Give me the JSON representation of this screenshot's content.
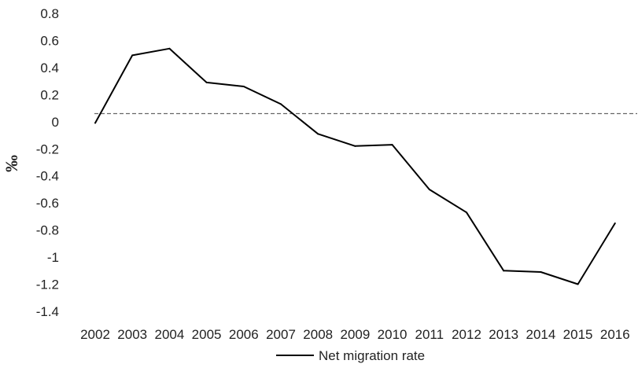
{
  "chart_data": {
    "type": "line",
    "title": "",
    "xlabel": "",
    "ylabel": "‰",
    "x": [
      "2002",
      "2003",
      "2004",
      "2005",
      "2006",
      "2007",
      "2008",
      "2009",
      "2010",
      "2011",
      "2012",
      "2013",
      "2014",
      "2015",
      "2016"
    ],
    "series": [
      {
        "name": "Net migration rate",
        "values": [
          -0.01,
          0.49,
          0.54,
          0.29,
          0.26,
          0.13,
          -0.09,
          -0.18,
          -0.17,
          -0.5,
          -0.67,
          -1.1,
          -1.11,
          -1.2,
          -0.75
        ],
        "color": "#000000"
      }
    ],
    "reference_line": {
      "value": 0.06,
      "style": "dashed",
      "color": "#666666"
    },
    "ylim": [
      -1.4,
      0.8
    ],
    "yticks": [
      "0.8",
      "0.6",
      "0.4",
      "0.2",
      "0",
      "-0.2",
      "-0.4",
      "-0.6",
      "-0.8",
      "-1",
      "-1.2",
      "-1.4"
    ],
    "ytick_values": [
      0.8,
      0.6,
      0.4,
      0.2,
      0,
      -0.2,
      -0.4,
      -0.6,
      -0.8,
      -1,
      -1.2,
      -1.4
    ],
    "grid": false,
    "legend_position": "bottom-center"
  }
}
